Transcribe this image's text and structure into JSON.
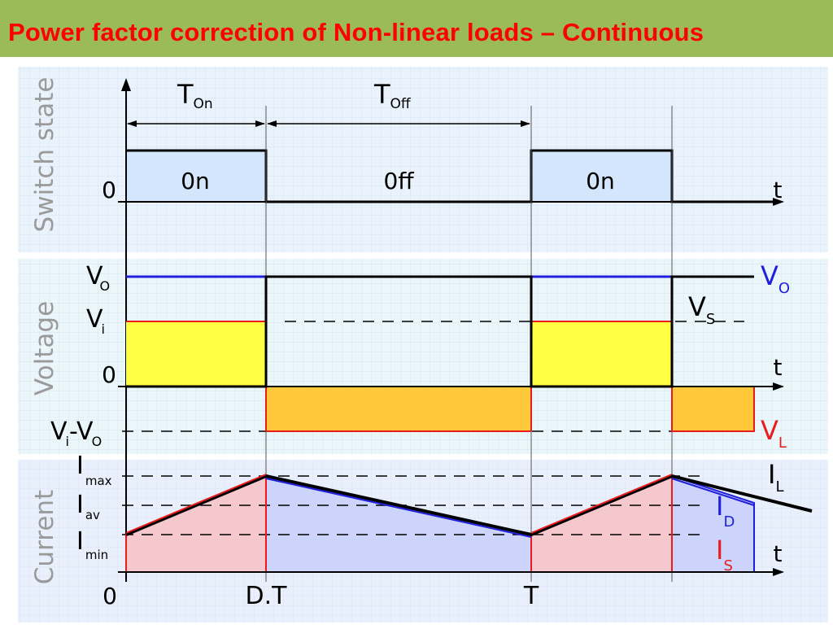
{
  "slide": {
    "title": "Power factor correction of Non-linear loads – Continuous"
  },
  "panels": {
    "switch": {
      "label": "Switch state",
      "on_label": "0n",
      "off_label": "0ff",
      "on_label_2": "0n",
      "zero": "0",
      "t": "t"
    },
    "voltage": {
      "label": "Voltage",
      "vo": "V",
      "vo_sub": "O",
      "vi": "V",
      "vi_sub": "i",
      "zero": "0",
      "vivo_a": "V",
      "vivo_sub1": "i",
      "vivo_mid": "-V",
      "vivo_sub2": "O",
      "legend_vo": "V",
      "legend_vo_sub": "O",
      "legend_vs": "V",
      "legend_vs_sub": "S",
      "legend_vl": "V",
      "legend_vl_sub": "L",
      "t": "t"
    },
    "current": {
      "label": "Current",
      "imax": "I",
      "imax_sub": "max",
      "iav": "I",
      "iav_sub": "av",
      "imin": "I",
      "imin_sub": "min",
      "legend_il": "I",
      "legend_il_sub": "L",
      "legend_id": "I",
      "legend_id_sub": "D",
      "legend_is": "I",
      "legend_is_sub": "S",
      "t": "t"
    }
  },
  "timing": {
    "ton": "T",
    "ton_sub": "On",
    "toff": "T",
    "toff_sub": "Off",
    "origin": "0",
    "dt": "D.T",
    "period": "T"
  },
  "colors": {
    "header": "#9bbb59",
    "title": "#ff0000",
    "panel_bg": "#e2eefa",
    "on_fill": "#d4e6fb",
    "vi_fill": "#ffff44",
    "vl_fill": "#ffc83a",
    "is_fill": "#f4c8cc",
    "id_fill": "#cdd4fb",
    "blue": "#1f1fdc",
    "red": "#e81c1c",
    "navy": "#1a1a8c"
  }
}
